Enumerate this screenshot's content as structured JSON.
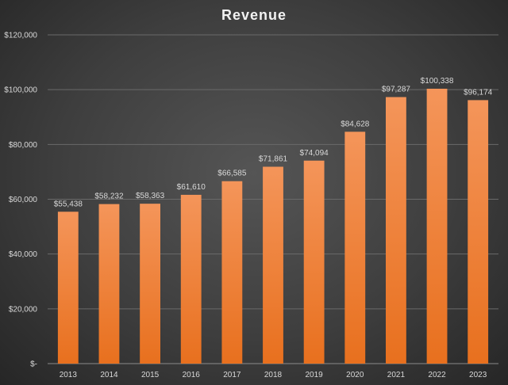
{
  "chart_data": {
    "type": "bar",
    "title": "Revenue",
    "xlabel": "",
    "ylabel": "",
    "categories": [
      "2013",
      "2014",
      "2015",
      "2016",
      "2017",
      "2018",
      "2019",
      "2020",
      "2021",
      "2022",
      "2023"
    ],
    "values": [
      55438,
      58232,
      58363,
      61610,
      66585,
      71861,
      74094,
      84628,
      97287,
      100338,
      96174
    ],
    "value_labels": [
      "$55,438",
      "$58,232",
      "$58,363",
      "$61,610",
      "$66,585",
      "$71,861",
      "$74,094",
      "$84,628",
      "$97,287",
      "$100,338",
      "$96,174"
    ],
    "ylim": [
      0,
      120000
    ],
    "yticks": [
      0,
      20000,
      40000,
      60000,
      80000,
      100000,
      120000
    ],
    "ytick_labels": [
      "$-",
      "$20,000",
      "$40,000",
      "$60,000",
      "$80,000",
      "$100,000",
      "$120,000"
    ],
    "grid": true,
    "legend": "none",
    "colors": {
      "bar_top": "#f4955a",
      "bar_bottom": "#e8701e",
      "background": "#404040"
    }
  }
}
